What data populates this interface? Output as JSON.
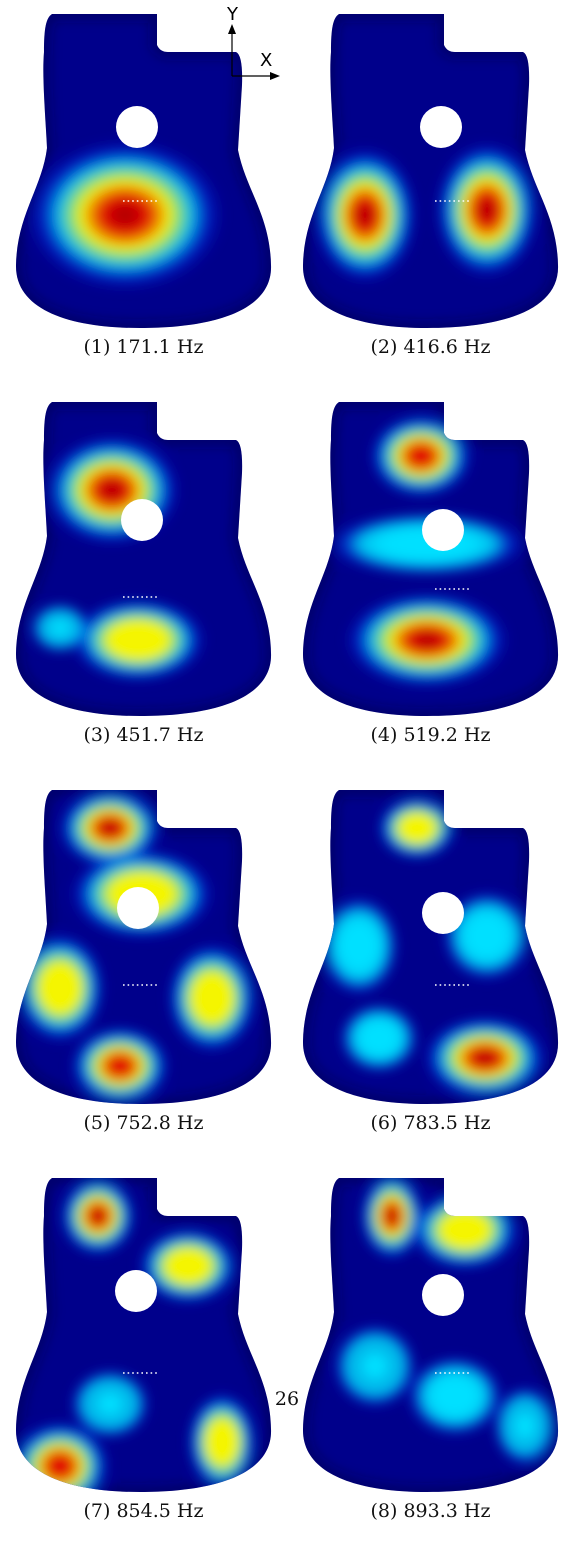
{
  "axes": {
    "y_label": "Y",
    "x_label": "X"
  },
  "colors": {
    "cold": "#00008b",
    "low": "#0028e6",
    "cyan": "#00e0ff",
    "yellow": "#f5f500",
    "hot": "#e10000",
    "peak": "#a00000",
    "hole": "#ffffff"
  },
  "panels": [
    {
      "caption": "(1) 171.1 Hz"
    },
    {
      "caption": "(2) 416.6 Hz"
    },
    {
      "caption": "(3) 451.7 Hz"
    },
    {
      "caption": "(4) 519.2 Hz"
    },
    {
      "caption": "(5) 752.8 Hz"
    },
    {
      "caption": "(6) 783.5 Hz"
    },
    {
      "caption": "(7) 854.5 Hz"
    },
    {
      "caption": "(8) 893.3 Hz"
    }
  ],
  "page_number": "26"
}
